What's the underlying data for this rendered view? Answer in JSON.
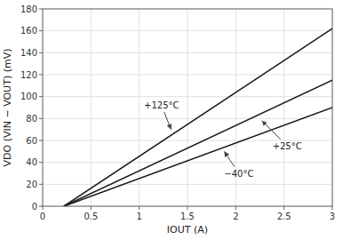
{
  "chart_data": {
    "type": "line",
    "xlabel": "IOUT (A)",
    "ylabel": "VDO (VIN − VOUT) (mV)",
    "xlim": [
      0,
      3.0
    ],
    "ylim": [
      0,
      180
    ],
    "xticks": [
      0,
      0.5,
      1.0,
      1.5,
      2.0,
      2.5,
      3.0
    ],
    "yticks": [
      0,
      20,
      40,
      60,
      80,
      100,
      120,
      140,
      160,
      180
    ],
    "grid": true,
    "series": [
      {
        "color": "#1a1a1a",
        "x": [
          0.22,
          3.0
        ],
        "values": [
          0,
          162
        ]
      },
      {
        "color": "#1a1a1a",
        "x": [
          0.22,
          3.0
        ],
        "values": [
          0,
          115
        ]
      },
      {
        "color": "#1a1a1a",
        "x": [
          0.22,
          3.0
        ],
        "values": [
          0,
          90
        ]
      }
    ],
    "annotations": [
      {
        "text": "+125°C",
        "x": 1.33,
        "y": 70,
        "text_x": 1.05,
        "text_y": 92
      },
      {
        "text": "+25°C",
        "x": 2.27,
        "y": 78,
        "text_x": 2.38,
        "text_y": 55
      },
      {
        "text": "−40°C",
        "x": 1.88,
        "y": 50,
        "text_x": 1.88,
        "text_y": 30
      }
    ]
  }
}
